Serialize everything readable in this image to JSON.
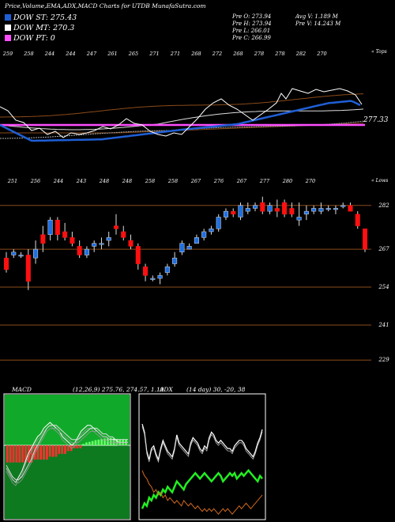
{
  "header": {
    "title": "Price,Volume,EMA,ADX,MACD Charts for UTDB MunafaSutra.com"
  },
  "legend": [
    {
      "label": "DOW ST: 275.43",
      "color": "#1f5fd6"
    },
    {
      "label": "DOW MT: 270.3",
      "color": "#ffffff"
    },
    {
      "label": "DOW PT: 0",
      "color": "#ff4dff"
    }
  ],
  "ohlc": {
    "open": "Pre   O: 273.94",
    "high": "Pre   H: 273.94",
    "low": "Pre   L: 266.01",
    "close": "Pre   C: 266.99",
    "avg_volume": "Avg V: 1.189 M",
    "pre_volume": "Pre  V: 14.243 M"
  },
  "ema_panel": {
    "top_note": "« Tops",
    "bottom_note": "« Lows",
    "current_value": "277.33",
    "top_labels": [
      "259",
      "258",
      "244",
      "244",
      "247",
      "261",
      "265",
      "271",
      "271",
      "268",
      "272",
      "268",
      "278",
      "278",
      "282",
      "270"
    ],
    "bottom_labels": [
      "251",
      "256",
      "244",
      "243",
      "248",
      "248",
      "258",
      "258",
      "267",
      "276",
      "267",
      "277",
      "280",
      "270"
    ]
  },
  "chart_data": [
    {
      "type": "candlestick",
      "title": "",
      "y_tick_labels": [
        "282",
        "267",
        "254",
        "241",
        "229"
      ],
      "ylim": [
        225,
        286
      ],
      "candles": [
        {
          "o": 264,
          "h": 266,
          "l": 259,
          "c": 260
        },
        {
          "o": 265,
          "h": 267,
          "l": 264,
          "c": 266
        },
        {
          "o": 265,
          "h": 266,
          "l": 264,
          "c": 265
        },
        {
          "o": 265,
          "h": 267,
          "l": 253,
          "c": 256
        },
        {
          "o": 264,
          "h": 270,
          "l": 262,
          "c": 267
        },
        {
          "o": 272,
          "h": 275,
          "l": 266,
          "c": 269
        },
        {
          "o": 272,
          "h": 278,
          "l": 270,
          "c": 277
        },
        {
          "o": 277,
          "h": 278,
          "l": 270,
          "c": 272
        },
        {
          "o": 273,
          "h": 276,
          "l": 270,
          "c": 271
        },
        {
          "o": 271,
          "h": 273,
          "l": 268,
          "c": 269
        },
        {
          "o": 268,
          "h": 270,
          "l": 264,
          "c": 265
        },
        {
          "o": 265,
          "h": 268,
          "l": 264,
          "c": 267
        },
        {
          "o": 268,
          "h": 270,
          "l": 266,
          "c": 269
        },
        {
          "o": 269,
          "h": 271,
          "l": 267,
          "c": 269
        },
        {
          "o": 270,
          "h": 273,
          "l": 268,
          "c": 271
        },
        {
          "o": 275,
          "h": 279,
          "l": 272,
          "c": 274
        },
        {
          "o": 273,
          "h": 275,
          "l": 270,
          "c": 271
        },
        {
          "o": 270,
          "h": 272,
          "l": 267,
          "c": 268
        },
        {
          "o": 268,
          "h": 269,
          "l": 260,
          "c": 262
        },
        {
          "o": 261,
          "h": 262,
          "l": 256,
          "c": 258
        },
        {
          "o": 257,
          "h": 258,
          "l": 256,
          "c": 257
        },
        {
          "o": 257,
          "h": 259,
          "l": 255,
          "c": 258
        },
        {
          "o": 259,
          "h": 262,
          "l": 258,
          "c": 261
        },
        {
          "o": 262,
          "h": 266,
          "l": 261,
          "c": 264
        },
        {
          "o": 266,
          "h": 270,
          "l": 265,
          "c": 269
        },
        {
          "o": 267,
          "h": 269,
          "l": 267,
          "c": 268
        },
        {
          "o": 269,
          "h": 272,
          "l": 269,
          "c": 271
        },
        {
          "o": 271,
          "h": 274,
          "l": 270,
          "c": 273
        },
        {
          "o": 273,
          "h": 275,
          "l": 272,
          "c": 274
        },
        {
          "o": 274,
          "h": 279,
          "l": 273,
          "c": 278
        },
        {
          "o": 278,
          "h": 281,
          "l": 277,
          "c": 280
        },
        {
          "o": 280,
          "h": 281,
          "l": 278,
          "c": 279
        },
        {
          "o": 278,
          "h": 283,
          "l": 277,
          "c": 282
        },
        {
          "o": 280,
          "h": 283,
          "l": 279,
          "c": 281
        },
        {
          "o": 281,
          "h": 283,
          "l": 280,
          "c": 282
        },
        {
          "o": 283,
          "h": 285,
          "l": 279,
          "c": 280
        },
        {
          "o": 280,
          "h": 283,
          "l": 279,
          "c": 282
        },
        {
          "o": 281,
          "h": 284,
          "l": 278,
          "c": 280
        },
        {
          "o": 283,
          "h": 284,
          "l": 278,
          "c": 279
        },
        {
          "o": 281,
          "h": 283,
          "l": 278,
          "c": 279
        },
        {
          "o": 277,
          "h": 283,
          "l": 275,
          "c": 278
        },
        {
          "o": 279,
          "h": 282,
          "l": 277,
          "c": 280
        },
        {
          "o": 280,
          "h": 282,
          "l": 279,
          "c": 281
        },
        {
          "o": 280,
          "h": 283,
          "l": 279,
          "c": 281
        },
        {
          "o": 281,
          "h": 282,
          "l": 280,
          "c": 281
        },
        {
          "o": 281,
          "h": 282,
          "l": 279,
          "c": 281
        },
        {
          "o": 282,
          "h": 283,
          "l": 281,
          "c": 282
        },
        {
          "o": 282,
          "h": 283,
          "l": 280,
          "c": 280
        },
        {
          "o": 279,
          "h": 280,
          "l": 274,
          "c": 275
        },
        {
          "o": 274,
          "h": 274,
          "l": 266,
          "c": 267
        }
      ],
      "up_color": "#1f6fe0",
      "down_color": "#ff1010"
    },
    {
      "type": "line",
      "title": "MACD",
      "subtitle": "(12,26,9) 275.76, 274.57, 1.19",
      "series": [
        {
          "values": [
            -8,
            -10,
            -12,
            -13,
            -11,
            -9,
            -6,
            -3,
            -1,
            1,
            3,
            4,
            6,
            7,
            8,
            7,
            6,
            5,
            3,
            2,
            1,
            0,
            1,
            3,
            5,
            6,
            7,
            7,
            6,
            5,
            4,
            3,
            3,
            2,
            2,
            2,
            1,
            1,
            1,
            1
          ]
        },
        {
          "values": [
            -7,
            -9,
            -11,
            -12,
            -12,
            -11,
            -9,
            -7,
            -5,
            -2,
            0,
            2,
            4,
            6,
            7,
            7,
            7,
            6,
            5,
            4,
            3,
            2,
            2,
            2,
            3,
            4,
            5,
            6,
            6,
            6,
            5,
            4,
            4,
            3,
            3,
            2,
            2,
            2,
            2,
            2
          ]
        }
      ],
      "histogram": [
        -6,
        -6,
        -6,
        -6,
        -6,
        -6,
        -6,
        -6,
        -6,
        -5,
        -5,
        -5,
        -5,
        -5,
        -4,
        -4,
        -4,
        -3,
        -3,
        -3,
        -2,
        -2,
        -1,
        -1,
        -1,
        0.5,
        1,
        1.2,
        1.5,
        1.8,
        2,
        2.2,
        2.4,
        2.6,
        2.6,
        2.4,
        2.2,
        2.1,
        2,
        2
      ],
      "ylim": [
        -26,
        18
      ]
    },
    {
      "type": "line",
      "title": "ADX",
      "subtitle": "(14 day) 30, -20, 38",
      "series": [
        {
          "values": [
            35,
            32,
            25,
            22,
            26,
            27,
            24,
            22,
            26,
            29,
            27,
            25,
            24,
            23,
            26,
            31,
            28,
            27,
            26,
            25,
            24,
            28,
            30,
            29,
            28,
            26,
            25,
            27,
            26,
            30,
            32,
            31,
            29,
            28,
            29,
            28,
            27,
            26,
            26,
            25,
            27,
            28,
            29,
            29,
            28,
            26,
            25,
            24,
            23,
            25,
            28,
            30,
            33
          ]
        },
        {
          "values": [
            4,
            6,
            5,
            8,
            7,
            9,
            8,
            10,
            9,
            11,
            10,
            12,
            11,
            10,
            12,
            14,
            13,
            12,
            11,
            13,
            14,
            15,
            16,
            17,
            16,
            15,
            16,
            17,
            16,
            15,
            14,
            15,
            16,
            17,
            16,
            14,
            15,
            16,
            17,
            16,
            17,
            15,
            16,
            17,
            16,
            17,
            18,
            17,
            16,
            15,
            14,
            16,
            15
          ]
        },
        {
          "values": [
            18,
            16,
            15,
            13,
            12,
            10,
            11,
            9,
            10,
            8,
            9,
            7,
            8,
            7,
            6,
            7,
            6,
            5,
            7,
            6,
            5,
            6,
            5,
            4,
            5,
            4,
            3,
            4,
            3,
            4,
            3,
            4,
            3,
            2,
            3,
            4,
            3,
            4,
            3,
            2,
            3,
            4,
            5,
            4,
            5,
            6,
            5,
            4,
            5,
            6,
            7,
            8,
            9
          ]
        }
      ],
      "ylim": [
        0,
        46
      ]
    }
  ]
}
